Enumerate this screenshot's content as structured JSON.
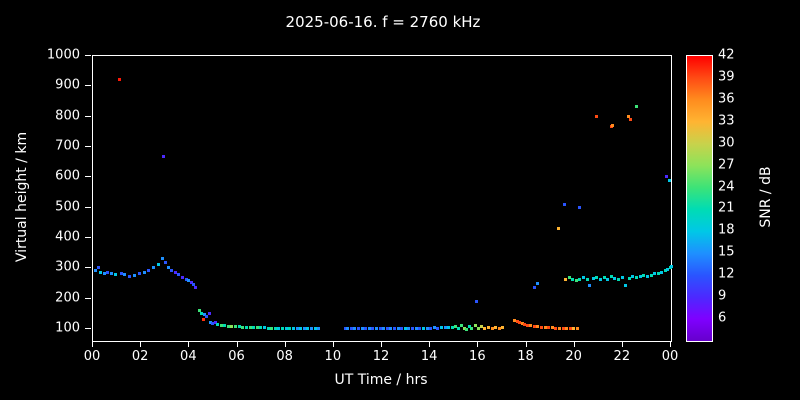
{
  "colors": {
    "background": "#000000",
    "axis": "#ffffff",
    "text": "#ffffff"
  },
  "chart_data": {
    "type": "scatter",
    "title": "2025-06-16. f = 2760 kHz",
    "xlabel": "UT Time / hrs",
    "ylabel": "Virtual height / km",
    "colorbar_label": "SNR / dB",
    "xlim": [
      0,
      24
    ],
    "ylim": [
      60,
      1000
    ],
    "grid": false,
    "x_ticks": [
      {
        "value": 0,
        "label": "00"
      },
      {
        "value": 2,
        "label": "02"
      },
      {
        "value": 4,
        "label": "04"
      },
      {
        "value": 6,
        "label": "06"
      },
      {
        "value": 8,
        "label": "08"
      },
      {
        "value": 10,
        "label": "10"
      },
      {
        "value": 12,
        "label": "12"
      },
      {
        "value": 14,
        "label": "14"
      },
      {
        "value": 16,
        "label": "16"
      },
      {
        "value": 18,
        "label": "18"
      },
      {
        "value": 20,
        "label": "20"
      },
      {
        "value": 22,
        "label": "22"
      },
      {
        "value": 24,
        "label": "00"
      }
    ],
    "y_ticks": [
      {
        "value": 100,
        "label": "100"
      },
      {
        "value": 200,
        "label": "200"
      },
      {
        "value": 300,
        "label": "300"
      },
      {
        "value": 400,
        "label": "400"
      },
      {
        "value": 500,
        "label": "500"
      },
      {
        "value": 600,
        "label": "600"
      },
      {
        "value": 700,
        "label": "700"
      },
      {
        "value": 800,
        "label": "800"
      },
      {
        "value": 900,
        "label": "900"
      },
      {
        "value": 1000,
        "label": "1000"
      }
    ],
    "colorbar": {
      "range": [
        3,
        42
      ],
      "ticks": [
        42,
        39,
        36,
        33,
        30,
        27,
        24,
        21,
        18,
        15,
        12,
        9,
        6
      ],
      "stops": [
        {
          "value": 3,
          "color": "#6600cc"
        },
        {
          "value": 6,
          "color": "#7f00ff"
        },
        {
          "value": 9,
          "color": "#4c29ff"
        },
        {
          "value": 12,
          "color": "#2a55ff"
        },
        {
          "value": 15,
          "color": "#1e90ff"
        },
        {
          "value": 18,
          "color": "#00c8e6"
        },
        {
          "value": 21,
          "color": "#00dcb4"
        },
        {
          "value": 24,
          "color": "#3ce378"
        },
        {
          "value": 27,
          "color": "#8ce35a"
        },
        {
          "value": 30,
          "color": "#c8d24b"
        },
        {
          "value": 33,
          "color": "#ffb432"
        },
        {
          "value": 36,
          "color": "#ff8c1e"
        },
        {
          "value": 39,
          "color": "#ff4b14"
        },
        {
          "value": 42,
          "color": "#ff0000"
        }
      ]
    },
    "points": [
      [
        0.1,
        290,
        15
      ],
      [
        0.2,
        300,
        12
      ],
      [
        0.3,
        285,
        18
      ],
      [
        0.45,
        280,
        15
      ],
      [
        0.6,
        285,
        12
      ],
      [
        0.75,
        280,
        15
      ],
      [
        0.9,
        278,
        18
      ],
      [
        1.1,
        920,
        41
      ],
      [
        1.15,
        282,
        12
      ],
      [
        1.3,
        278,
        15
      ],
      [
        1.5,
        272,
        12
      ],
      [
        1.7,
        276,
        15
      ],
      [
        1.9,
        280,
        12
      ],
      [
        2.1,
        285,
        15
      ],
      [
        2.3,
        292,
        12
      ],
      [
        2.5,
        300,
        15
      ],
      [
        2.7,
        310,
        18
      ],
      [
        2.85,
        330,
        15
      ],
      [
        2.9,
        668,
        9
      ],
      [
        3.0,
        318,
        12
      ],
      [
        3.1,
        300,
        15
      ],
      [
        3.25,
        292,
        12
      ],
      [
        3.4,
        285,
        9
      ],
      [
        3.55,
        278,
        12
      ],
      [
        3.7,
        268,
        9
      ],
      [
        3.85,
        262,
        12
      ],
      [
        3.95,
        258,
        15
      ],
      [
        4.05,
        252,
        9
      ],
      [
        4.15,
        245,
        12
      ],
      [
        4.25,
        235,
        9
      ],
      [
        4.4,
        160,
        24
      ],
      [
        4.5,
        150,
        21
      ],
      [
        4.55,
        128,
        40
      ],
      [
        4.6,
        145,
        15
      ],
      [
        4.7,
        138,
        12
      ],
      [
        4.8,
        150,
        9
      ],
      [
        4.85,
        120,
        15
      ],
      [
        4.95,
        115,
        12
      ],
      [
        5.05,
        118,
        9
      ],
      [
        5.15,
        112,
        21
      ],
      [
        5.3,
        110,
        24
      ],
      [
        5.45,
        108,
        21
      ],
      [
        5.6,
        107,
        24
      ],
      [
        5.75,
        106,
        27
      ],
      [
        5.9,
        105,
        24
      ],
      [
        6.05,
        105,
        21
      ],
      [
        6.2,
        104,
        24
      ],
      [
        6.35,
        104,
        21
      ],
      [
        6.5,
        103,
        24
      ],
      [
        6.65,
        103,
        21
      ],
      [
        6.8,
        102,
        24
      ],
      [
        6.95,
        102,
        21
      ],
      [
        7.1,
        102,
        18
      ],
      [
        7.25,
        101,
        21
      ],
      [
        7.4,
        101,
        24
      ],
      [
        7.55,
        101,
        21
      ],
      [
        7.7,
        100,
        18
      ],
      [
        7.85,
        100,
        21
      ],
      [
        8.0,
        100,
        18
      ],
      [
        8.15,
        100,
        21
      ],
      [
        8.3,
        100,
        18
      ],
      [
        8.45,
        100,
        15
      ],
      [
        8.6,
        100,
        18
      ],
      [
        8.75,
        100,
        15
      ],
      [
        8.9,
        100,
        18
      ],
      [
        9.05,
        100,
        15
      ],
      [
        9.2,
        100,
        18
      ],
      [
        9.35,
        98,
        15
      ],
      [
        10.45,
        100,
        12
      ],
      [
        10.55,
        98,
        15
      ],
      [
        10.7,
        100,
        12
      ],
      [
        10.85,
        100,
        15
      ],
      [
        11.0,
        100,
        12
      ],
      [
        11.15,
        100,
        15
      ],
      [
        11.3,
        98,
        12
      ],
      [
        11.45,
        100,
        15
      ],
      [
        11.6,
        100,
        12
      ],
      [
        11.75,
        100,
        15
      ],
      [
        11.9,
        100,
        12
      ],
      [
        12.05,
        100,
        15
      ],
      [
        12.2,
        100,
        12
      ],
      [
        12.35,
        100,
        15
      ],
      [
        12.5,
        98,
        12
      ],
      [
        12.65,
        100,
        15
      ],
      [
        12.8,
        100,
        12
      ],
      [
        12.95,
        100,
        18
      ],
      [
        13.1,
        100,
        15
      ],
      [
        13.25,
        100,
        12
      ],
      [
        13.4,
        100,
        15
      ],
      [
        13.55,
        100,
        12
      ],
      [
        13.7,
        100,
        18
      ],
      [
        13.85,
        100,
        15
      ],
      [
        14.0,
        100,
        12
      ],
      [
        14.15,
        102,
        15
      ],
      [
        14.3,
        100,
        12
      ],
      [
        14.45,
        102,
        18
      ],
      [
        14.6,
        104,
        15
      ],
      [
        14.75,
        102,
        18
      ],
      [
        14.9,
        104,
        21
      ],
      [
        15.05,
        106,
        24
      ],
      [
        15.15,
        100,
        21
      ],
      [
        15.3,
        110,
        24
      ],
      [
        15.4,
        100,
        27
      ],
      [
        15.5,
        95,
        24
      ],
      [
        15.6,
        105,
        21
      ],
      [
        15.7,
        98,
        24
      ],
      [
        15.85,
        108,
        27
      ],
      [
        15.9,
        190,
        12
      ],
      [
        16.0,
        100,
        27
      ],
      [
        16.1,
        105,
        30
      ],
      [
        16.25,
        100,
        33
      ],
      [
        16.4,
        102,
        33
      ],
      [
        16.55,
        100,
        36
      ],
      [
        16.7,
        102,
        33
      ],
      [
        16.85,
        100,
        36
      ],
      [
        17.0,
        102,
        33
      ],
      [
        17.5,
        125,
        36
      ],
      [
        17.6,
        122,
        39
      ],
      [
        17.7,
        118,
        39
      ],
      [
        17.8,
        115,
        36
      ],
      [
        17.9,
        112,
        39
      ],
      [
        18.0,
        110,
        39
      ],
      [
        18.15,
        108,
        36
      ],
      [
        18.3,
        106,
        39
      ],
      [
        18.3,
        235,
        12
      ],
      [
        18.45,
        248,
        15
      ],
      [
        18.45,
        105,
        36
      ],
      [
        18.6,
        104,
        39
      ],
      [
        18.75,
        103,
        36
      ],
      [
        18.9,
        102,
        39
      ],
      [
        19.05,
        102,
        36
      ],
      [
        19.2,
        101,
        39
      ],
      [
        19.3,
        430,
        33
      ],
      [
        19.35,
        100,
        36
      ],
      [
        19.5,
        100,
        39
      ],
      [
        19.65,
        100,
        36
      ],
      [
        19.8,
        98,
        39
      ],
      [
        19.95,
        100,
        33
      ],
      [
        20.1,
        100,
        36
      ],
      [
        19.55,
        510,
        12
      ],
      [
        19.6,
        262,
        33
      ],
      [
        19.75,
        268,
        24
      ],
      [
        19.9,
        262,
        21
      ],
      [
        20.05,
        258,
        24
      ],
      [
        20.2,
        500,
        12
      ],
      [
        20.2,
        262,
        21
      ],
      [
        20.35,
        268,
        18
      ],
      [
        20.5,
        262,
        21
      ],
      [
        20.6,
        240,
        15
      ],
      [
        20.75,
        265,
        18
      ],
      [
        20.9,
        800,
        39
      ],
      [
        20.9,
        268,
        21
      ],
      [
        21.05,
        262,
        18
      ],
      [
        21.2,
        268,
        21
      ],
      [
        21.35,
        262,
        18
      ],
      [
        21.5,
        765,
        39
      ],
      [
        21.55,
        770,
        36
      ],
      [
        21.5,
        270,
        21
      ],
      [
        21.65,
        265,
        18
      ],
      [
        21.8,
        262,
        21
      ],
      [
        21.95,
        268,
        18
      ],
      [
        22.1,
        240,
        18
      ],
      [
        22.2,
        800,
        36
      ],
      [
        22.3,
        788,
        39
      ],
      [
        22.55,
        832,
        24
      ],
      [
        22.25,
        265,
        21
      ],
      [
        22.4,
        270,
        18
      ],
      [
        22.55,
        268,
        21
      ],
      [
        22.7,
        272,
        18
      ],
      [
        22.85,
        275,
        21
      ],
      [
        23.0,
        270,
        18
      ],
      [
        23.15,
        275,
        21
      ],
      [
        23.3,
        280,
        18
      ],
      [
        23.45,
        282,
        21
      ],
      [
        23.6,
        285,
        18
      ],
      [
        23.75,
        290,
        21
      ],
      [
        23.8,
        600,
        9
      ],
      [
        23.9,
        588,
        18
      ],
      [
        23.85,
        295,
        18
      ],
      [
        23.95,
        300,
        21
      ],
      [
        24.0,
        305,
        18
      ]
    ]
  }
}
